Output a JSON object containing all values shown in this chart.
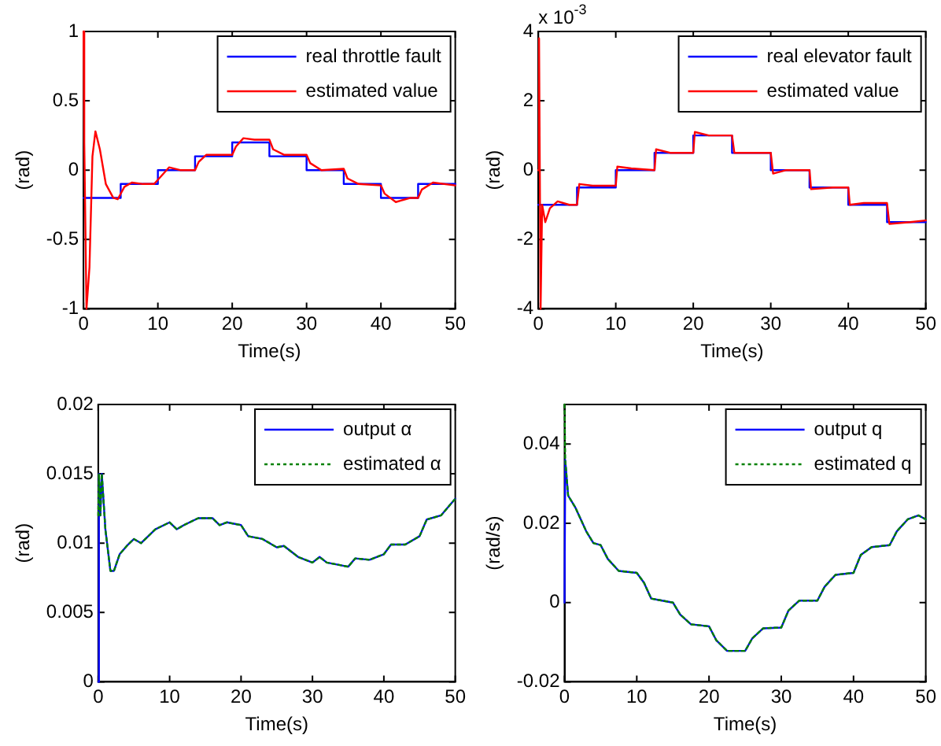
{
  "chart_data": [
    {
      "type": "line",
      "xlabel": "Time(s)",
      "ylabel": "(rad)",
      "xlim": [
        0,
        50
      ],
      "xticks": [
        0,
        10,
        20,
        30,
        40,
        50
      ],
      "ylim": [
        -1,
        1
      ],
      "yticks": [
        -1,
        -0.5,
        0,
        0.5,
        1
      ],
      "legend": "top right",
      "series": [
        {
          "name": "real throttle fault",
          "color": "#0000ff",
          "x": [
            0,
            5,
            5,
            10,
            10,
            15,
            15,
            20,
            20,
            25,
            25,
            30,
            30,
            35,
            35,
            40,
            40,
            45,
            45,
            50
          ],
          "values": [
            -0.2,
            -0.2,
            -0.1,
            -0.1,
            0,
            0,
            0.1,
            0.1,
            0.2,
            0.2,
            0.1,
            0.1,
            0,
            0,
            -0.1,
            -0.1,
            -0.2,
            -0.2,
            -0.1,
            -0.1
          ]
        },
        {
          "name": "estimated value",
          "color": "#ff0000",
          "x": [
            0,
            0.1,
            0.4,
            0.8,
            1.2,
            1.6,
            2.2,
            3,
            4,
            4.6,
            5.5,
            6.5,
            8,
            9.5,
            10.5,
            11.5,
            13,
            15,
            15.5,
            16.5,
            18,
            20,
            20.5,
            21.5,
            23,
            25,
            25.5,
            27,
            30,
            30.5,
            32,
            35,
            35.5,
            37,
            40,
            40.5,
            42,
            44,
            45,
            45.5,
            47,
            50
          ],
          "values": [
            1,
            0.2,
            -1,
            -0.7,
            0.1,
            0.28,
            0.15,
            -0.1,
            -0.2,
            -0.21,
            -0.12,
            -0.09,
            -0.1,
            -0.1,
            -0.04,
            0.02,
            0,
            0,
            0.06,
            0.11,
            0.11,
            0.11,
            0.17,
            0.23,
            0.22,
            0.22,
            0.15,
            0.11,
            0.11,
            0.05,
            0,
            0.01,
            -0.06,
            -0.1,
            -0.11,
            -0.17,
            -0.23,
            -0.2,
            -0.2,
            -0.14,
            -0.09,
            -0.11
          ]
        }
      ]
    },
    {
      "type": "line",
      "xlabel": "Time(s)",
      "ylabel": "(rad)",
      "annotations": [
        "x 10$^{-3}$"
      ],
      "xlim": [
        0,
        50
      ],
      "xticks": [
        0,
        10,
        20,
        30,
        40,
        50
      ],
      "ylim": [
        -4,
        4
      ],
      "yticks": [
        -4,
        -2,
        0,
        2,
        4
      ],
      "legend": "top right",
      "series": [
        {
          "name": "real elevator fault",
          "color": "#0000ff",
          "x": [
            0,
            5,
            5,
            10,
            10,
            15,
            15,
            20,
            20,
            25,
            25,
            30,
            30,
            35,
            35,
            40,
            40,
            45,
            45,
            50
          ],
          "values": [
            -1,
            -1,
            -0.5,
            -0.5,
            0,
            0,
            0.5,
            0.5,
            1,
            1,
            0.5,
            0.5,
            0,
            0,
            -0.5,
            -0.5,
            -1,
            -1,
            -1.5,
            -1.5
          ]
        },
        {
          "name": "estimated value",
          "color": "#ff0000",
          "x": [
            0,
            0.1,
            0.3,
            0.5,
            0.9,
            1.5,
            2.5,
            4,
            5,
            5.3,
            7,
            10,
            10.2,
            12,
            15,
            15.2,
            17,
            20,
            20.2,
            22,
            25,
            25.3,
            28,
            30,
            30.3,
            32,
            35,
            35.2,
            38,
            40,
            40.2,
            42,
            45,
            45.3,
            48,
            50
          ],
          "values": [
            0,
            3.8,
            -4,
            -1,
            -1.5,
            -1.1,
            -0.9,
            -1,
            -1,
            -0.4,
            -0.45,
            -0.45,
            0.1,
            0.05,
            0,
            0.6,
            0.5,
            0.5,
            1.1,
            1,
            1,
            0.5,
            0.5,
            0.5,
            -0.1,
            0,
            0,
            -0.55,
            -0.5,
            -0.5,
            -1,
            -0.95,
            -0.95,
            -1.55,
            -1.5,
            -1.45
          ]
        }
      ]
    },
    {
      "type": "line",
      "xlabel": "Time(s)",
      "ylabel": "(rad)",
      "xlim": [
        0,
        50
      ],
      "xticks": [
        0,
        10,
        20,
        30,
        40,
        50
      ],
      "ylim": [
        0,
        0.02
      ],
      "yticks": [
        0,
        0.005,
        0.01,
        0.015,
        0.02
      ],
      "legend": "top right",
      "series": [
        {
          "name": "output α",
          "color": "#0000ff",
          "x": [
            0,
            0.1,
            0.3,
            0.5,
            1,
            1.7,
            2.2,
            3,
            4,
            5,
            6,
            7,
            8,
            10,
            11,
            12,
            14,
            16,
            17,
            18,
            20,
            21,
            23,
            25,
            26,
            28,
            30,
            31,
            32,
            35,
            36,
            38,
            40,
            41,
            43,
            45,
            46,
            48,
            50
          ],
          "values": [
            0,
            0.015,
            0.012,
            0.015,
            0.011,
            0.008,
            0.008,
            0.0092,
            0.0098,
            0.0103,
            0.01,
            0.0105,
            0.011,
            0.0115,
            0.011,
            0.0113,
            0.0118,
            0.0118,
            0.0113,
            0.0115,
            0.0113,
            0.0105,
            0.0103,
            0.0097,
            0.0098,
            0.009,
            0.0086,
            0.009,
            0.0086,
            0.0083,
            0.0089,
            0.0088,
            0.0092,
            0.0099,
            0.0099,
            0.0105,
            0.0117,
            0.012,
            0.0132
          ]
        },
        {
          "name": "estimated α",
          "color": "#008000",
          "line_style": "dotted",
          "x": [
            0,
            0.1,
            0.3,
            0.5,
            1,
            1.7,
            2.2,
            3,
            4,
            5,
            6,
            7,
            8,
            10,
            11,
            12,
            14,
            16,
            17,
            18,
            20,
            21,
            23,
            25,
            26,
            28,
            30,
            31,
            32,
            35,
            36,
            38,
            40,
            41,
            43,
            45,
            46,
            48,
            50
          ],
          "values": [
            0.012,
            0.015,
            0.012,
            0.015,
            0.011,
            0.008,
            0.008,
            0.0092,
            0.0098,
            0.0103,
            0.01,
            0.0105,
            0.011,
            0.0115,
            0.011,
            0.0113,
            0.0118,
            0.0118,
            0.0113,
            0.0115,
            0.0113,
            0.0105,
            0.0103,
            0.0097,
            0.0098,
            0.009,
            0.0086,
            0.009,
            0.0086,
            0.0083,
            0.0089,
            0.0088,
            0.0092,
            0.0099,
            0.0099,
            0.0105,
            0.0117,
            0.012,
            0.0132
          ]
        }
      ]
    },
    {
      "type": "line",
      "xlabel": "Time(s)",
      "ylabel": "(rad/s)",
      "xlim": [
        0,
        50
      ],
      "xticks": [
        0,
        10,
        20,
        30,
        40,
        50
      ],
      "ylim": [
        -0.02,
        0.05
      ],
      "yticks": [
        -0.02,
        0,
        0.02,
        0.04
      ],
      "legend": "top right",
      "series": [
        {
          "name": "output q",
          "color": "#0000ff",
          "x": [
            0,
            0.1,
            0.5,
            1.5,
            3,
            4,
            5,
            6,
            7.5,
            10,
            11,
            12,
            13.5,
            15,
            16,
            17.5,
            20,
            21,
            22.5,
            25,
            26,
            27.5,
            30,
            31,
            32.5,
            35,
            36,
            37.5,
            40,
            41,
            42.5,
            45,
            46,
            47.5,
            49,
            50
          ],
          "values": [
            0,
            0.036,
            0.027,
            0.024,
            0.018,
            0.015,
            0.0145,
            0.011,
            0.008,
            0.0075,
            0.005,
            0.001,
            0.0005,
            0,
            -0.003,
            -0.0055,
            -0.006,
            -0.0095,
            -0.0122,
            -0.0122,
            -0.009,
            -0.0065,
            -0.0063,
            -0.002,
            0.0005,
            0.0005,
            0.004,
            0.007,
            0.0075,
            0.012,
            0.014,
            0.0145,
            0.018,
            0.021,
            0.022,
            0.021
          ]
        },
        {
          "name": "estimated q",
          "color": "#008000",
          "line_style": "dotted",
          "x": [
            0,
            0.1,
            0.5,
            1.5,
            3,
            4,
            5,
            6,
            7.5,
            10,
            11,
            12,
            13.5,
            15,
            16,
            17.5,
            20,
            21,
            22.5,
            25,
            26,
            27.5,
            30,
            31,
            32.5,
            35,
            36,
            37.5,
            40,
            41,
            42.5,
            45,
            46,
            47.5,
            49,
            50
          ],
          "values": [
            0.05,
            0.036,
            0.027,
            0.024,
            0.018,
            0.015,
            0.0145,
            0.011,
            0.008,
            0.0075,
            0.005,
            0.001,
            0.0005,
            0,
            -0.003,
            -0.0055,
            -0.006,
            -0.0095,
            -0.0122,
            -0.0122,
            -0.009,
            -0.0065,
            -0.0063,
            -0.002,
            0.0005,
            0.0005,
            0.004,
            0.007,
            0.0075,
            0.012,
            0.014,
            0.0145,
            0.018,
            0.021,
            0.022,
            0.021
          ]
        }
      ]
    }
  ]
}
